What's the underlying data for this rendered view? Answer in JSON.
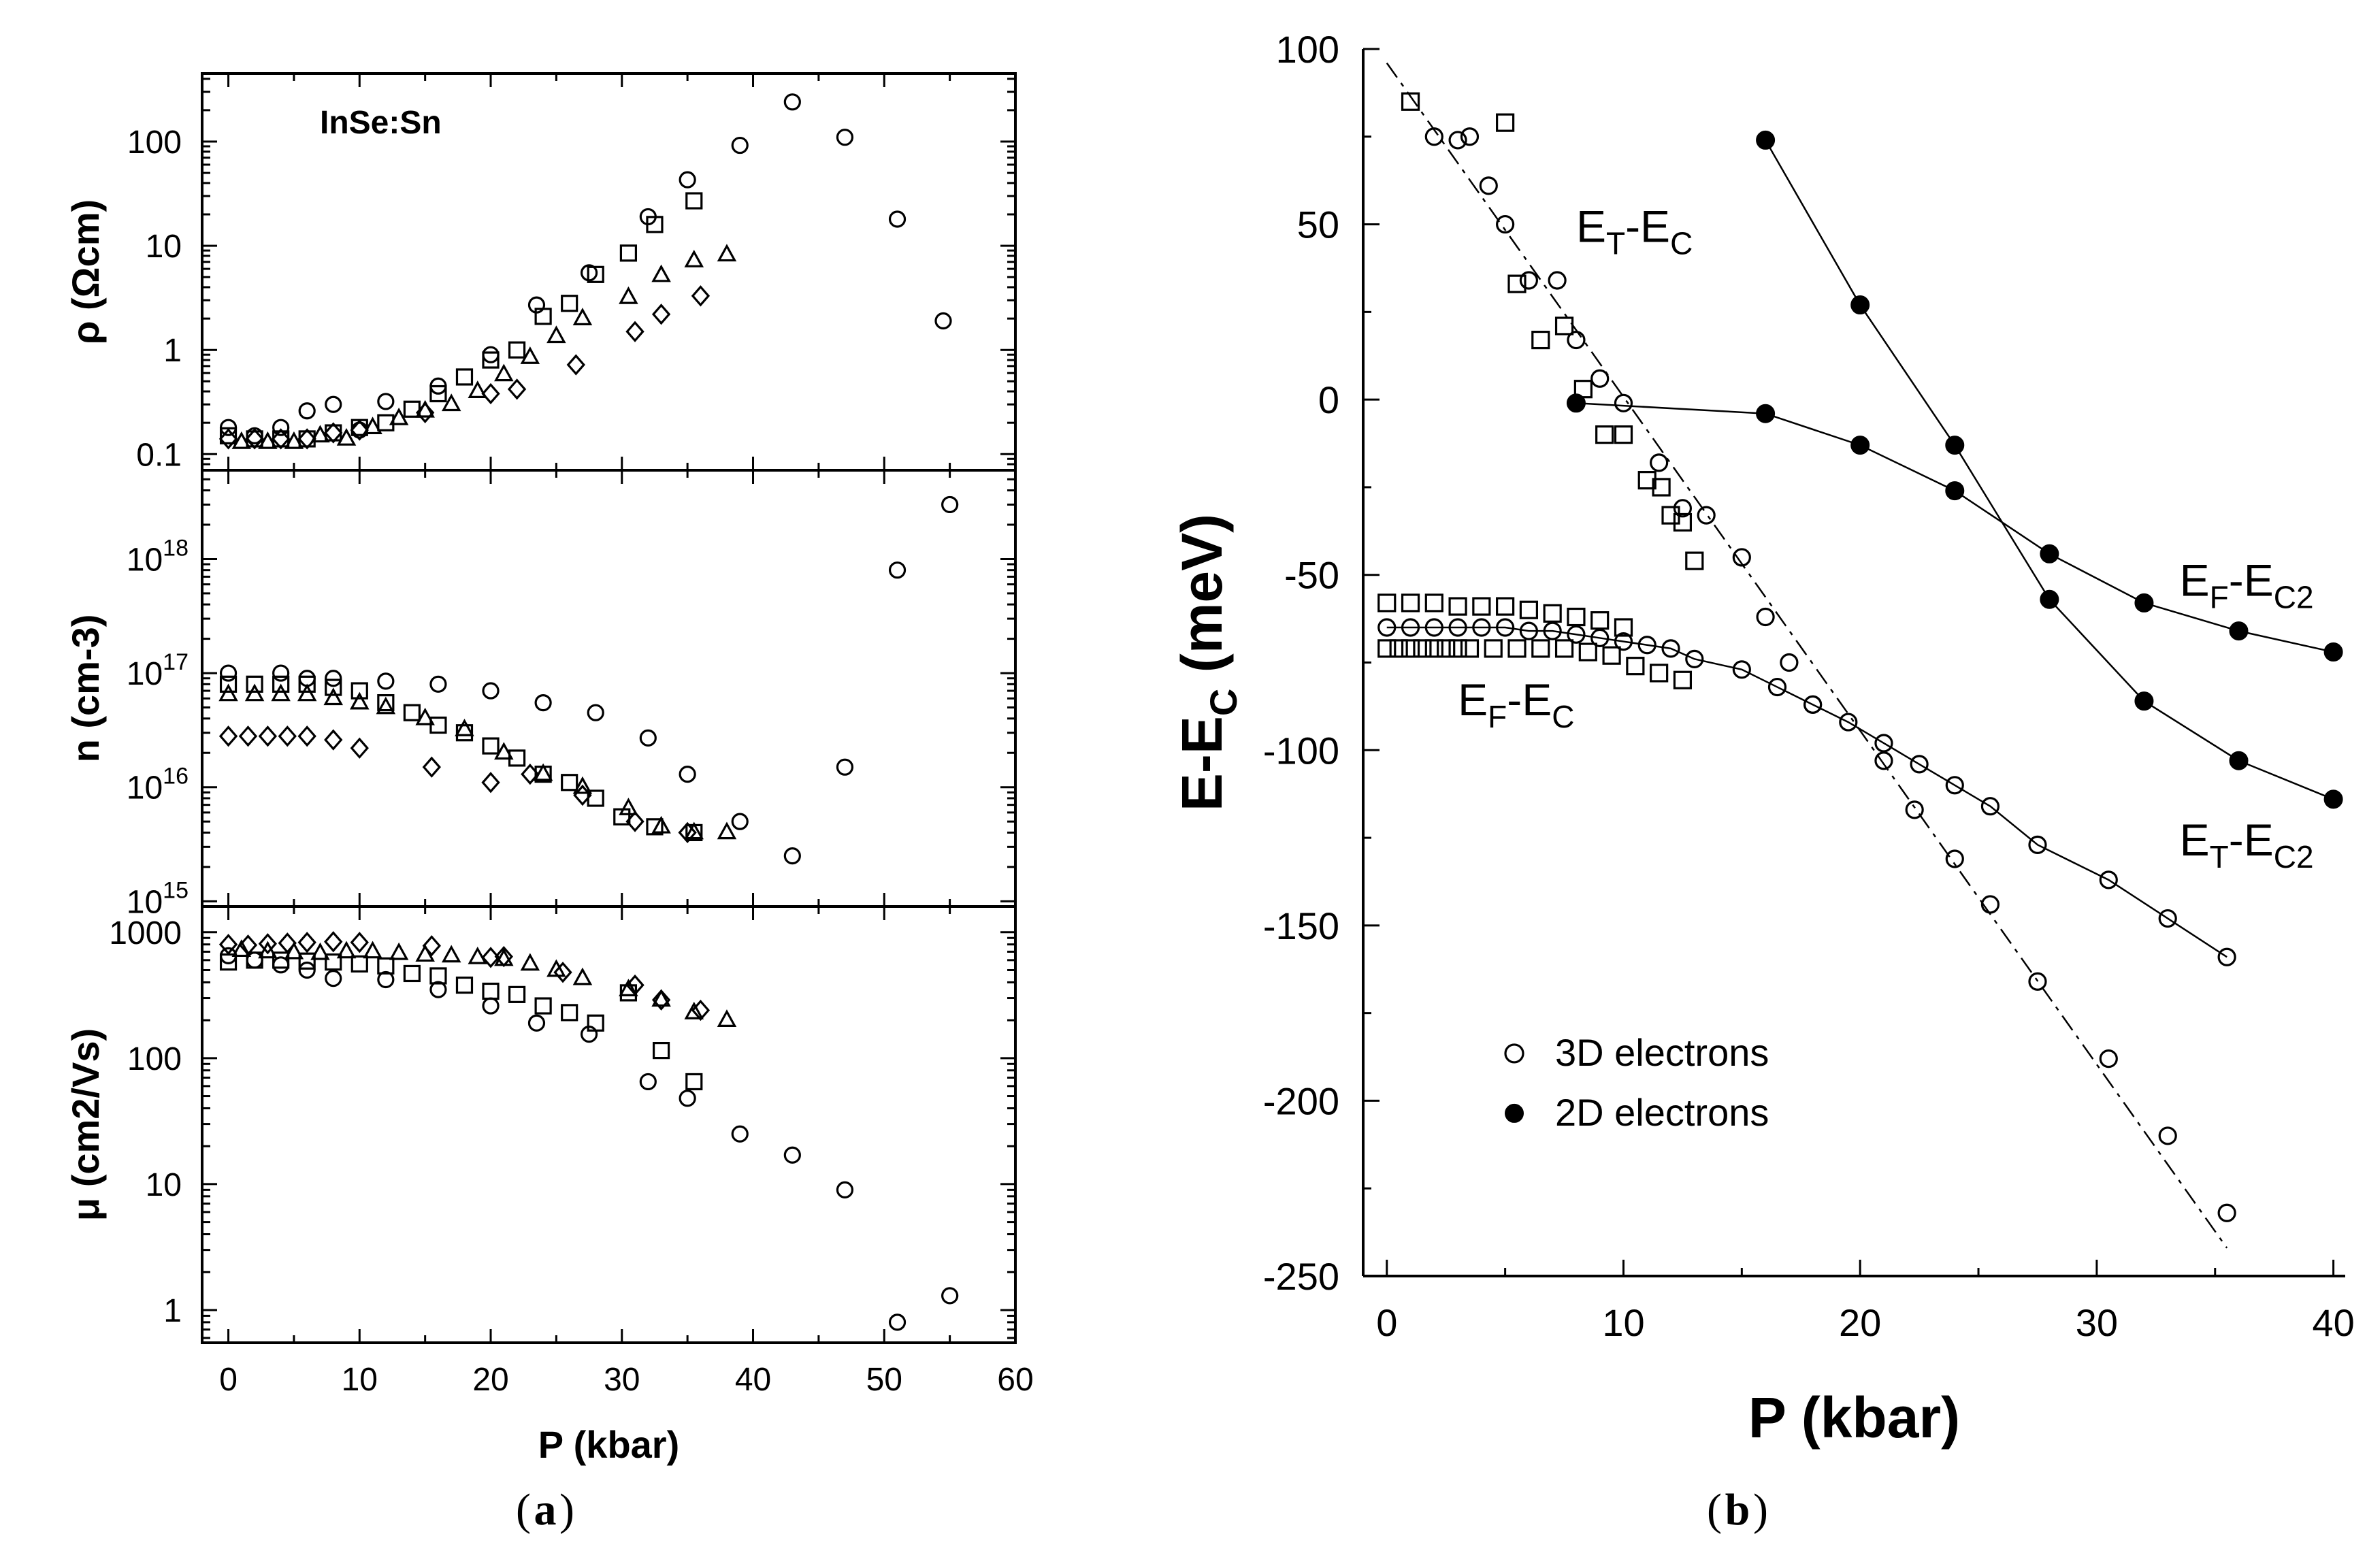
{
  "colors": {
    "ink": "#000000",
    "background": "#ffffff"
  },
  "chart_data": [
    {
      "id": "a-rho",
      "panel": "a",
      "type": "scatter",
      "yscale": "log",
      "xlim": [
        -2,
        60
      ],
      "ylim": [
        0.07,
        450
      ],
      "ylabel": "ρ (Ωcm)",
      "yticks": [
        0.1,
        1,
        10,
        100
      ],
      "ytick_labels": [
        "0.1",
        "1",
        "10",
        "100"
      ],
      "annotation": "InSe:Sn",
      "series": [
        {
          "name": "circles",
          "marker": "circle",
          "x": [
            0,
            2,
            4,
            6,
            8,
            10,
            12,
            16,
            20,
            23.5,
            27.5,
            32,
            35,
            39,
            43,
            47,
            51,
            54.5
          ],
          "y": [
            0.18,
            0.15,
            0.18,
            0.26,
            0.3,
            0.17,
            0.32,
            0.45,
            0.9,
            2.7,
            5.5,
            19,
            43,
            92,
            240,
            110,
            18,
            1.9
          ]
        },
        {
          "name": "squares",
          "marker": "square",
          "x": [
            0,
            2,
            4,
            6,
            8,
            10,
            12,
            14,
            16,
            18,
            20,
            22,
            24,
            26,
            28,
            30.5,
            32.5,
            35.5
          ],
          "y": [
            0.15,
            0.14,
            0.14,
            0.14,
            0.16,
            0.18,
            0.2,
            0.27,
            0.38,
            0.55,
            0.8,
            1.0,
            2.1,
            2.8,
            5.3,
            8.5,
            16,
            27
          ]
        },
        {
          "name": "triangles",
          "marker": "triangle",
          "x": [
            1,
            3,
            5,
            7,
            9,
            11,
            13,
            15,
            17,
            19,
            21,
            23,
            25,
            27,
            30.5,
            33,
            35.5,
            38
          ],
          "y": [
            0.13,
            0.13,
            0.13,
            0.15,
            0.14,
            0.18,
            0.22,
            0.26,
            0.3,
            0.4,
            0.58,
            0.85,
            1.35,
            2.0,
            3.2,
            5.2,
            7.2,
            8.2
          ]
        },
        {
          "name": "diamonds",
          "marker": "diamond",
          "x": [
            0,
            2,
            4,
            6,
            8,
            10,
            15,
            20,
            22,
            26.5,
            31,
            33,
            36
          ],
          "y": [
            0.14,
            0.14,
            0.14,
            0.14,
            0.16,
            0.17,
            0.25,
            0.38,
            0.42,
            0.72,
            1.5,
            2.2,
            3.3
          ]
        }
      ]
    },
    {
      "id": "a-n",
      "panel": "a",
      "type": "scatter",
      "yscale": "log",
      "xlim": [
        -2,
        60
      ],
      "ylim": [
        900000000000000.0,
        6e+18
      ],
      "ylabel": "n (cm-3)",
      "yticks": [
        1000000000000000.0,
        1e+16,
        1e+17,
        1e+18
      ],
      "ytick_labels": [
        "10",
        "10",
        "10",
        "10"
      ],
      "ytick_exponents": [
        "15",
        "16",
        "17",
        "18"
      ],
      "series": [
        {
          "name": "circles",
          "marker": "circle",
          "x": [
            0,
            4,
            6,
            8,
            12,
            16,
            20,
            24,
            28,
            32,
            35,
            39,
            43,
            47,
            51,
            55
          ],
          "y": [
            1e+17,
            1e+17,
            9e+16,
            9e+16,
            8.5e+16,
            8e+16,
            7e+16,
            5.5e+16,
            4.5e+16,
            2.7e+16,
            1.3e+16,
            5000000000000000.0,
            2500000000000000.0,
            1.5e+16,
            8e+17,
            3e+18
          ]
        },
        {
          "name": "squares",
          "marker": "square",
          "x": [
            0,
            2,
            4,
            6,
            8,
            10,
            12,
            14,
            16,
            18,
            20,
            22,
            24,
            26,
            28,
            30,
            32.5,
            35.5
          ],
          "y": [
            8e+16,
            8e+16,
            8e+16,
            8e+16,
            7.5e+16,
            7e+16,
            5.5e+16,
            4.5e+16,
            3.5e+16,
            3e+16,
            2.3e+16,
            1.8e+16,
            1.3e+16,
            1.1e+16,
            8000000000000000.0,
            5500000000000000.0,
            4500000000000000.0,
            4000000000000000.0
          ]
        },
        {
          "name": "triangles",
          "marker": "triangle",
          "x": [
            0,
            2,
            4,
            6,
            8,
            10,
            12,
            15,
            18,
            21,
            24,
            27,
            30.5,
            33,
            35.5,
            38
          ],
          "y": [
            6.5e+16,
            6.5e+16,
            6.5e+16,
            6.5e+16,
            6e+16,
            5.5e+16,
            5e+16,
            4e+16,
            3.2e+16,
            2e+16,
            1.3e+16,
            1e+16,
            6500000000000000.0,
            4500000000000000.0,
            4000000000000000.0,
            4000000000000000.0
          ]
        },
        {
          "name": "diamonds",
          "marker": "diamond",
          "x": [
            0,
            1.5,
            3,
            4.5,
            6,
            8,
            10,
            15.5,
            20,
            23,
            27,
            31,
            35
          ],
          "y": [
            2.8e+16,
            2.8e+16,
            2.8e+16,
            2.8e+16,
            2.8e+16,
            2.6e+16,
            2.2e+16,
            1.5e+16,
            1.1e+16,
            1.3e+16,
            8500000000000000.0,
            5000000000000000.0,
            4000000000000000.0
          ]
        }
      ]
    },
    {
      "id": "a-mu",
      "panel": "a",
      "type": "scatter",
      "yscale": "log",
      "xlim": [
        -2,
        60
      ],
      "ylim": [
        0.55,
        1600
      ],
      "ylabel": "μ (cm2/Vs)",
      "yticks": [
        1,
        10,
        100,
        1000
      ],
      "ytick_labels": [
        "1",
        "10",
        "100",
        "1000"
      ],
      "xticks": [
        0,
        10,
        20,
        30,
        40,
        50,
        60
      ],
      "xtick_labels": [
        "0",
        "10",
        "20",
        "30",
        "40",
        "50",
        "60"
      ],
      "xlabel": "P (kbar)",
      "series": [
        {
          "name": "circles",
          "marker": "circle",
          "x": [
            0,
            2,
            4,
            6,
            8,
            12,
            16,
            20,
            23.5,
            27.5,
            32,
            35,
            39,
            43,
            47,
            51,
            55
          ],
          "y": [
            650,
            600,
            550,
            500,
            430,
            420,
            350,
            260,
            190,
            155,
            65,
            48,
            25,
            17,
            9,
            0.8,
            1.3
          ]
        },
        {
          "name": "squares",
          "marker": "square",
          "x": [
            0,
            2,
            4,
            6,
            8,
            10,
            12,
            14,
            16,
            18,
            20,
            22,
            24,
            26,
            28,
            30.5,
            33,
            35.5
          ],
          "y": [
            580,
            600,
            600,
            590,
            580,
            560,
            540,
            470,
            450,
            380,
            340,
            320,
            260,
            230,
            190,
            330,
            115,
            65
          ]
        },
        {
          "name": "triangles",
          "marker": "triangle",
          "x": [
            1,
            3,
            5,
            7,
            9,
            11,
            13,
            15,
            17,
            19,
            21,
            23,
            25,
            27,
            30.5,
            33,
            35.5,
            38
          ],
          "y": [
            720,
            700,
            690,
            680,
            700,
            700,
            680,
            660,
            650,
            630,
            610,
            560,
            500,
            430,
            350,
            290,
            230,
            200
          ]
        },
        {
          "name": "diamonds",
          "marker": "diamond",
          "x": [
            0,
            1.5,
            3,
            4.5,
            6,
            8,
            10,
            15.5,
            20,
            21,
            25.5,
            31,
            33,
            36
          ],
          "y": [
            800,
            790,
            810,
            820,
            830,
            840,
            830,
            780,
            630,
            640,
            480,
            380,
            290,
            240
          ]
        }
      ]
    },
    {
      "id": "b",
      "panel": "b",
      "type": "scatter",
      "xlim": [
        -1,
        40.5
      ],
      "ylim": [
        -250,
        100
      ],
      "xticks": [
        0,
        10,
        20,
        30,
        40
      ],
      "xtick_labels": [
        "0",
        "10",
        "20",
        "30",
        "40"
      ],
      "yticks": [
        -250,
        -200,
        -150,
        -100,
        -50,
        0,
        50,
        100
      ],
      "ytick_labels": [
        "-250",
        "-200",
        "-150",
        "-100",
        "-50",
        "0",
        "50",
        "100"
      ],
      "xlabel": "P (kbar)",
      "ylabel": "E-E",
      "ylabel_sub": "C",
      "ylabel_suffix": " (meV)",
      "legend": {
        "position": "lower-left",
        "entries": [
          "3D electrons",
          "2D electrons"
        ]
      },
      "annotations": [
        {
          "main": "E",
          "sub1": "T",
          "dash": "-E",
          "sub2": "C",
          "x": 8,
          "y": 45
        },
        {
          "main": "E",
          "sub1": "F",
          "dash": "-E",
          "sub2": "C",
          "x": 3,
          "y": -90
        },
        {
          "main": "E",
          "sub1": "F",
          "dash": "-E",
          "sub2": "C2",
          "x": 33.5,
          "y": -56
        },
        {
          "main": "E",
          "sub1": "T",
          "dash": "-E",
          "sub2": "C2",
          "x": 33.5,
          "y": -130
        }
      ],
      "series": [
        {
          "name": "ET-EC dashed fit",
          "style": "dashed-line",
          "x": [
            0,
            35.5
          ],
          "y": [
            96,
            -242
          ]
        },
        {
          "name": "3D electrons ET-EC",
          "marker": "circle",
          "x": [
            2,
            3,
            3.5,
            4.3,
            5,
            6,
            7.2,
            8,
            9,
            10,
            11.5,
            12.5,
            13.5,
            15,
            16,
            17,
            18,
            21,
            22.3,
            24,
            25.5,
            27.5,
            30.5,
            33,
            35.5
          ],
          "y": [
            75,
            74,
            75,
            61,
            50,
            34,
            34,
            17,
            6,
            -1,
            -18,
            -31,
            -33,
            -45,
            -62,
            -75,
            -87,
            -103,
            -117,
            -131,
            -144,
            -166,
            -188,
            -210,
            -232
          ]
        },
        {
          "name": "3D electrons EF-EC",
          "marker": "circle",
          "line": true,
          "x": [
            0,
            1,
            2,
            3,
            4,
            5,
            6,
            7,
            8,
            9,
            10,
            11,
            12,
            13,
            15,
            16.5,
            18,
            19.5,
            21,
            22.5,
            24,
            25.5,
            27.5,
            30.5,
            33,
            35.5
          ],
          "y": [
            -65,
            -65,
            -65,
            -65,
            -65,
            -65,
            -66,
            -66,
            -67,
            -68,
            -69,
            -70,
            -71,
            -74,
            -77,
            -82,
            -87,
            -92,
            -98,
            -104,
            -110,
            -116,
            -127,
            -137,
            -148,
            -159
          ]
        },
        {
          "name": "3D electrons squares",
          "marker": "square",
          "x": [
            0,
            1,
            2,
            3,
            4,
            5,
            6,
            7,
            8,
            9,
            10,
            1,
            5,
            5.5,
            6.5,
            7.5,
            8.3,
            9.2,
            10,
            11,
            11.6,
            12,
            12.5,
            13,
            0,
            0.5,
            1,
            1.5,
            2,
            2.5,
            3,
            3.5,
            4.5,
            5.5,
            6.5,
            7.5,
            8.5,
            9.5,
            10.5,
            11.5,
            12.5
          ],
          "y": [
            -58,
            -58,
            -58,
            -59,
            -59,
            -59,
            -60,
            -61,
            -62,
            -63,
            -65,
            85,
            79,
            33,
            17,
            21,
            3,
            -10,
            -10,
            -23,
            -25,
            -33,
            -35,
            -46,
            -71,
            -71,
            -71,
            -71,
            -71,
            -71,
            -71,
            -71,
            -71,
            -71,
            -71,
            -71,
            -72,
            -73,
            -76,
            -78,
            -80
          ]
        },
        {
          "name": "2D electrons EF-EC2",
          "marker": "filled-circle",
          "line": true,
          "x": [
            8,
            16,
            20,
            24,
            28,
            32,
            36,
            40
          ],
          "y": [
            -1,
            -4,
            -13,
            -26,
            -44,
            -58,
            -66,
            -72
          ]
        },
        {
          "name": "2D electrons ET-EC2",
          "marker": "filled-circle",
          "line": true,
          "x": [
            16,
            20,
            24,
            28,
            32,
            36,
            40
          ],
          "y": [
            74,
            27,
            -13,
            -57,
            -86,
            -103,
            -114
          ]
        }
      ]
    }
  ],
  "captions": {
    "a": "a",
    "b": "b"
  }
}
